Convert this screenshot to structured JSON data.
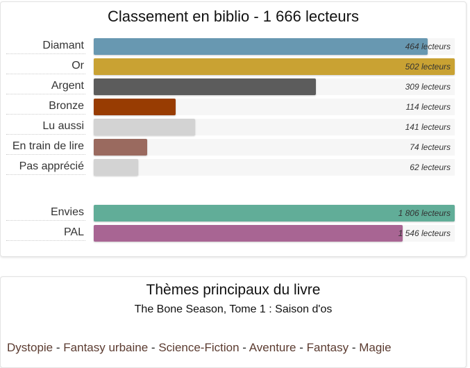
{
  "ranking": {
    "title": "Classement en biblio - 1 666 lecteurs",
    "groups": [
      {
        "rows": [
          {
            "label": "Diamant",
            "value": 464,
            "value_label": "464 lecteurs",
            "color": "#6898b1"
          },
          {
            "label": "Or",
            "value": 502,
            "value_label": "502 lecteurs",
            "color": "#c9a233"
          },
          {
            "label": "Argent",
            "value": 309,
            "value_label": "309 lecteurs",
            "color": "#5c5c5c"
          },
          {
            "label": "Bronze",
            "value": 114,
            "value_label": "114 lecteurs",
            "color": "#983c02"
          },
          {
            "label": "Lu aussi",
            "value": 141,
            "value_label": "141 lecteurs",
            "color": "#d3d3d3"
          },
          {
            "label": "En train de lire",
            "value": 74,
            "value_label": "74 lecteurs",
            "color": "#9a6a5f"
          },
          {
            "label": "Pas apprécié",
            "value": 62,
            "value_label": "62 lecteurs",
            "color": "#d3d3d3"
          }
        ]
      },
      {
        "rows": [
          {
            "label": "Envies",
            "value": 1806,
            "value_label": "1 806 lecteurs",
            "color": "#61ad98"
          },
          {
            "label": "PAL",
            "value": 1546,
            "value_label": "1 546 lecteurs",
            "color": "#a86593"
          }
        ]
      }
    ]
  },
  "themes": {
    "title": "Thèmes principaux du livre",
    "subtitle": "The Bone Season, Tome 1 : Saison d'os",
    "separator": "-",
    "items": [
      "Dystopie",
      "Fantasy urbaine",
      "Science-Fiction",
      "Aventure",
      "Fantasy",
      "Magie"
    ]
  }
}
